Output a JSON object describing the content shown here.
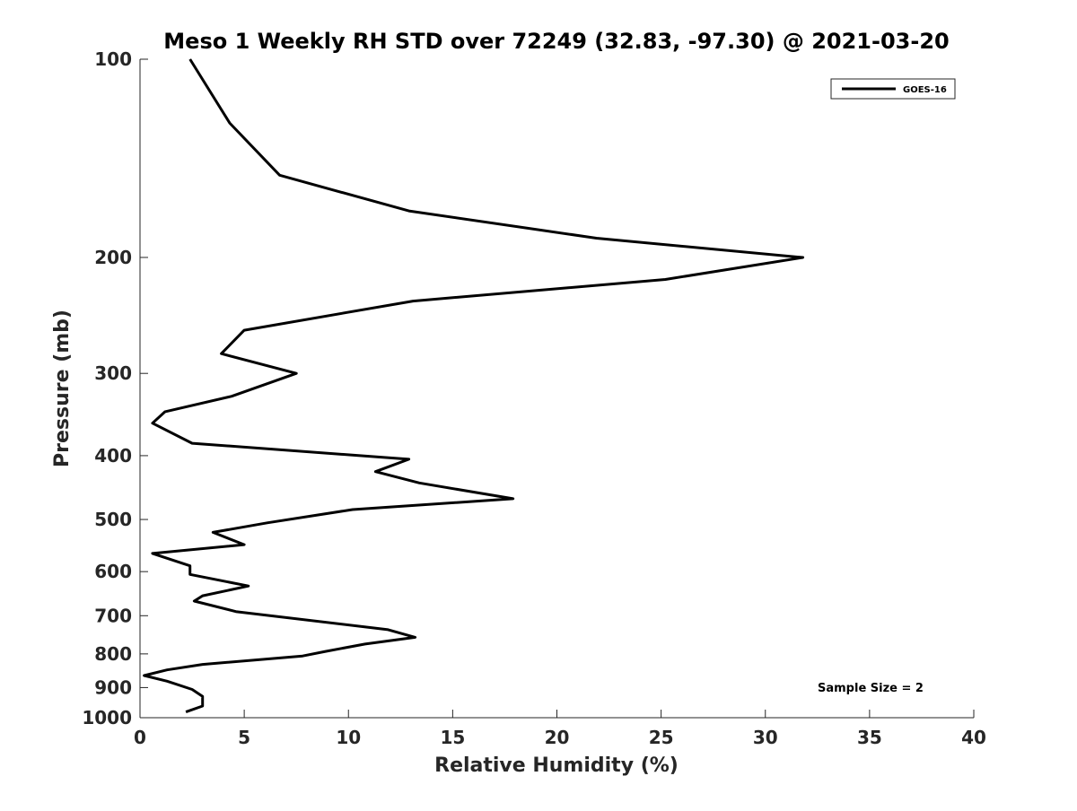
{
  "chart_data": {
    "type": "line",
    "title": "Meso 1 Weekly RH STD over 72249 (32.83, -97.30) @ 2021-03-20",
    "xlabel": "Relative Humidity (%)",
    "ylabel": "Pressure (mb)",
    "xlim": [
      0,
      40
    ],
    "ylim": [
      100,
      1000
    ],
    "y_scale": "log",
    "y_reversed": true,
    "x_ticks": [
      "0",
      "5",
      "10",
      "15",
      "20",
      "25",
      "30",
      "35",
      "40"
    ],
    "y_ticks": [
      "100",
      "200",
      "300",
      "400",
      "500",
      "600",
      "700",
      "800",
      "900",
      "1000"
    ],
    "grid": false,
    "legend_position": "top-right",
    "annotation": "Sample Size = 2",
    "series": [
      {
        "name": "GOES-16",
        "color": "#000000",
        "points": [
          [
            2.4,
            100
          ],
          [
            4.3,
            125
          ],
          [
            6.7,
            150
          ],
          [
            12.9,
            170
          ],
          [
            21.9,
            187
          ],
          [
            31.8,
            200
          ],
          [
            25.2,
            216
          ],
          [
            13.1,
            233
          ],
          [
            5.0,
            258
          ],
          [
            3.9,
            280
          ],
          [
            7.5,
            300
          ],
          [
            4.4,
            325
          ],
          [
            1.2,
            343
          ],
          [
            0.6,
            357
          ],
          [
            2.5,
            383
          ],
          [
            12.9,
            405
          ],
          [
            11.3,
            423
          ],
          [
            13.4,
            440
          ],
          [
            17.9,
            465
          ],
          [
            10.2,
            483
          ],
          [
            6.1,
            506
          ],
          [
            3.5,
            523
          ],
          [
            5.0,
            546
          ],
          [
            0.6,
            563
          ],
          [
            2.4,
            588
          ],
          [
            2.4,
            606
          ],
          [
            5.2,
            631
          ],
          [
            3.0,
            653
          ],
          [
            2.6,
            665
          ],
          [
            4.6,
            690
          ],
          [
            11.9,
            735
          ],
          [
            13.2,
            755
          ],
          [
            10.8,
            773
          ],
          [
            8.9,
            793
          ],
          [
            7.8,
            806
          ],
          [
            3.0,
            830
          ],
          [
            1.3,
            846
          ],
          [
            0.2,
            863
          ],
          [
            1.3,
            880
          ],
          [
            2.5,
            906
          ],
          [
            3.0,
            928
          ],
          [
            3.0,
            960
          ],
          [
            2.2,
            980
          ]
        ]
      }
    ]
  }
}
